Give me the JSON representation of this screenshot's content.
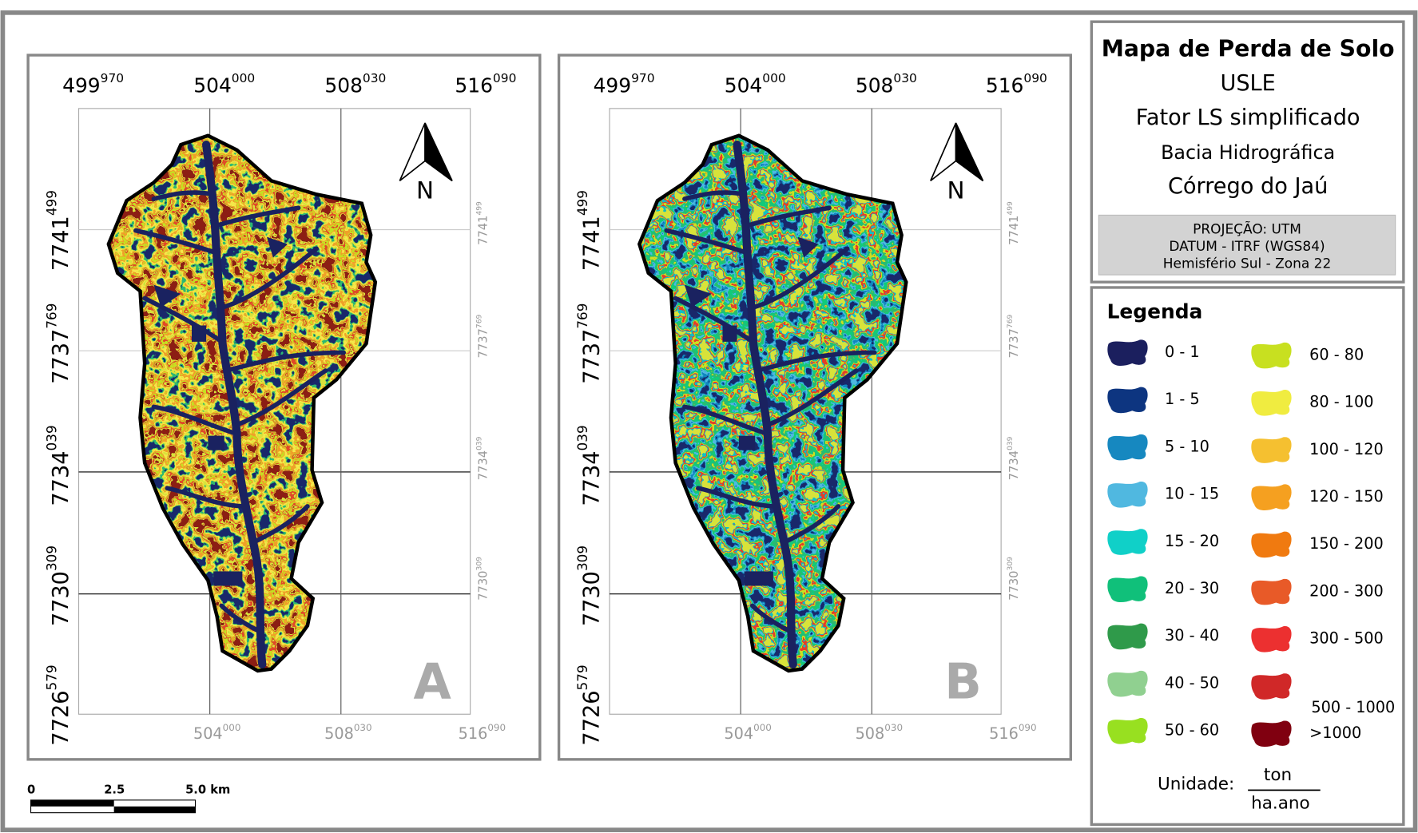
{
  "panels": [
    {
      "letter": "A"
    },
    {
      "letter": "B"
    }
  ],
  "grid": {
    "top": [
      {
        "main": "499",
        "sup": "970"
      },
      {
        "main": "504",
        "sup": "000"
      },
      {
        "main": "508",
        "sup": "030"
      },
      {
        "main": "516",
        "sup": "090"
      }
    ],
    "left": [
      {
        "main": "7741",
        "sup": "499"
      },
      {
        "main": "7737",
        "sup": "769"
      },
      {
        "main": "7734",
        "sup": "039"
      },
      {
        "main": "7730",
        "sup": "309"
      },
      {
        "main": "7726",
        "sup": "579"
      }
    ],
    "right": [
      {
        "main": "7741",
        "sup": "499"
      },
      {
        "main": "7737",
        "sup": "769"
      },
      {
        "main": "7734",
        "sup": "039"
      },
      {
        "main": "7730",
        "sup": "309"
      }
    ],
    "bottom": [
      {
        "main": "504",
        "sup": "000"
      },
      {
        "main": "508",
        "sup": "030"
      },
      {
        "main": "516",
        "sup": "090"
      }
    ]
  },
  "north": "N",
  "title_box": {
    "title": "Mapa de Perda de Solo",
    "lines": [
      "USLE",
      "Fator LS simplificado",
      "Bacia Hidrográfica",
      "Córrego do Jaú"
    ],
    "projection": [
      "PROJEÇÃO: UTM",
      "DATUM - ITRF (WGS84)",
      "Hemisfério Sul - Zona 22"
    ]
  },
  "legend": {
    "title": "Legenda",
    "items": [
      {
        "label": "0 - 1",
        "color": "#1b1f5e"
      },
      {
        "label": "1 - 5",
        "color": "#0d3580"
      },
      {
        "label": "5 - 10",
        "color": "#1688c0"
      },
      {
        "label": "10 - 15",
        "color": "#50b8e0"
      },
      {
        "label": "15 - 20",
        "color": "#10d0c8"
      },
      {
        "label": "20 - 30",
        "color": "#10c07a"
      },
      {
        "label": "30 - 40",
        "color": "#2f9a4a"
      },
      {
        "label": "40 - 50",
        "color": "#90d090"
      },
      {
        "label": "50 - 60",
        "color": "#98e020"
      },
      {
        "label": "60 - 80",
        "color": "#c8e020"
      },
      {
        "label": "80 - 100",
        "color": "#f0ec40"
      },
      {
        "label": "100 - 120",
        "color": "#f5c030"
      },
      {
        "label": "120 - 150",
        "color": "#f5a020"
      },
      {
        "label": "150 - 200",
        "color": "#f07a10"
      },
      {
        "label": "200 - 300",
        "color": "#e85a28"
      },
      {
        "label": "300 - 500",
        "color": "#ec3030"
      },
      {
        "label": "500 - 1000",
        "color": "#d02828"
      },
      {
        "label": ">1000",
        "color": "#800010"
      }
    ]
  },
  "unit": {
    "label": "Unidade:",
    "numerator": "ton",
    "denominator": "ha.ano"
  },
  "scale_bar": {
    "labels": [
      "0",
      "2.5",
      "5.0 km"
    ]
  }
}
